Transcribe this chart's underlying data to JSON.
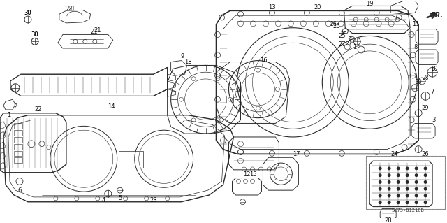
{
  "bg_color": "#ffffff",
  "line_color": "#2a2a2a",
  "label_color": "#111111",
  "part_code": "SK73-81210B",
  "fig_w": 6.4,
  "fig_h": 3.19,
  "dpi": 100
}
